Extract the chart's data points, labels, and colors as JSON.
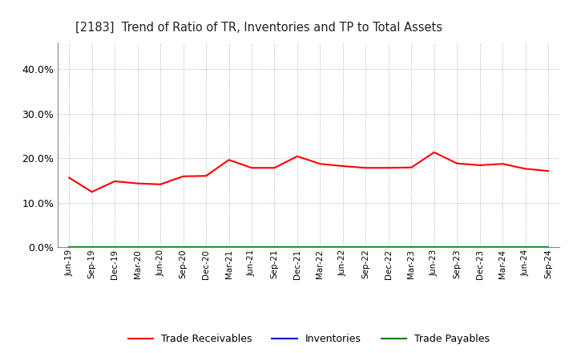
{
  "title": "[2183]  Trend of Ratio of TR, Inventories and TP to Total Assets",
  "x_labels": [
    "Jun-19",
    "Sep-19",
    "Dec-19",
    "Mar-20",
    "Jun-20",
    "Sep-20",
    "Dec-20",
    "Mar-21",
    "Jun-21",
    "Sep-21",
    "Dec-21",
    "Mar-22",
    "Jun-22",
    "Sep-22",
    "Dec-22",
    "Mar-23",
    "Jun-23",
    "Sep-23",
    "Dec-23",
    "Mar-24",
    "Jun-24",
    "Sep-24"
  ],
  "trade_receivables": [
    0.156,
    0.124,
    0.148,
    0.143,
    0.141,
    0.159,
    0.16,
    0.196,
    0.178,
    0.178,
    0.204,
    0.187,
    0.182,
    0.178,
    0.178,
    0.179,
    0.213,
    0.188,
    0.184,
    0.187,
    0.176,
    0.171
  ],
  "inventories": [
    0.0,
    0.0,
    0.0,
    0.0,
    0.0,
    0.0,
    0.0,
    0.0,
    0.0,
    0.0,
    0.0,
    0.0,
    0.0,
    0.0,
    0.0,
    0.0,
    0.0,
    0.0,
    0.0,
    0.0,
    0.0,
    0.0
  ],
  "trade_payables": [
    0.0,
    0.0,
    0.0,
    0.0,
    0.0,
    0.0,
    0.0,
    0.0,
    0.0,
    0.0,
    0.0,
    0.0,
    0.0,
    0.0,
    0.0,
    0.0,
    0.0,
    0.0,
    0.0,
    0.0,
    0.0,
    0.0
  ],
  "tr_color": "#FF0000",
  "inv_color": "#0000CC",
  "tp_color": "#008000",
  "ylim": [
    0.0,
    0.46
  ],
  "yticks": [
    0.0,
    0.1,
    0.2,
    0.3,
    0.4
  ],
  "background_color": "#FFFFFF",
  "plot_bg_color": "#FFFFFF",
  "grid_color": "#AAAAAA",
  "legend_labels": [
    "Trade Receivables",
    "Inventories",
    "Trade Payables"
  ]
}
